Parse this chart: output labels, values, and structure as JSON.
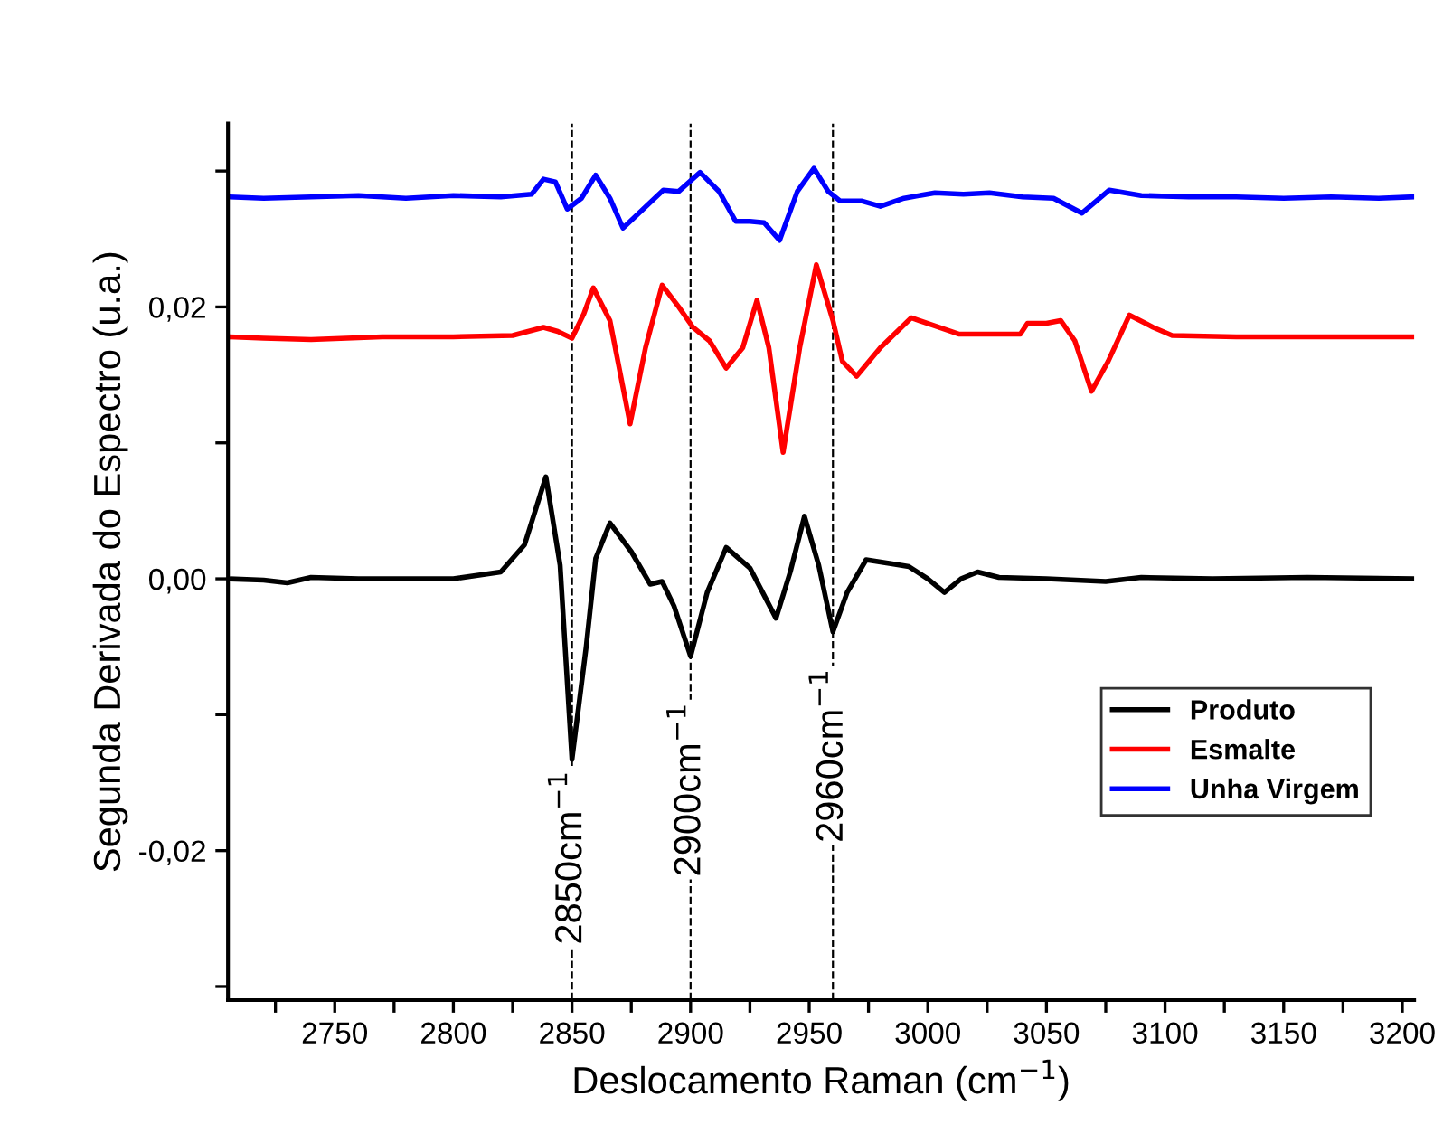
{
  "chart_data": {
    "type": "line",
    "xlabel": "Deslocamento Raman (cm$^{−1}$)",
    "ylabel": "Segunda Derivada do Espectro (u.a.)",
    "xlim": [
      2705,
      3205
    ],
    "ylim": [
      -0.031,
      0.0335
    ],
    "xticks": [
      {
        "value": 2725,
        "label": null
      },
      2750,
      {
        "value": 2775,
        "label": null
      },
      2800,
      {
        "value": 2825,
        "label": null
      },
      2850,
      {
        "value": 2875,
        "label": null
      },
      2900,
      {
        "value": 2925,
        "label": null
      },
      2950,
      {
        "value": 2975,
        "label": null
      },
      3000,
      {
        "value": 3025,
        "label": null
      },
      3050,
      {
        "value": 3075,
        "label": null
      },
      3100,
      {
        "value": 3125,
        "label": null
      },
      3150,
      {
        "value": 3175,
        "label": null
      },
      3200
    ],
    "yticks": [
      {
        "value": -0.03,
        "label": null
      },
      {
        "value": -0.02,
        "label": "-0,02"
      },
      {
        "value": -0.01,
        "label": null
      },
      {
        "value": 0,
        "label": "0,00"
      },
      {
        "value": 0.01,
        "label": null
      },
      {
        "value": 0.02,
        "label": "0,02"
      },
      {
        "value": 0.03,
        "label": null
      }
    ],
    "grid": false,
    "legend": "lower right",
    "line_style": "solid",
    "marker": "none",
    "ref_lines": [
      {
        "axis": "x",
        "value": 2850,
        "label": "2850cm$^{−1}$",
        "line_style": "dashed",
        "color": "#000000"
      },
      {
        "axis": "x",
        "value": 2900,
        "label": "2900cm$^{−1}$",
        "line_style": "dashed",
        "color": "#000000"
      },
      {
        "axis": "x",
        "value": 2960,
        "label": "2960cm$^{−1}$",
        "line_style": "dashed",
        "color": "#000000"
      }
    ],
    "series": [
      {
        "name": "Produto",
        "color": "#000000",
        "x": [
          2705,
          2720,
          2730,
          2740,
          2760,
          2800,
          2820,
          2830,
          2839,
          2845,
          2850,
          2856,
          2860,
          2866,
          2875,
          2883,
          2888,
          2893,
          2900,
          2907,
          2915,
          2925,
          2936,
          2942,
          2948,
          2954,
          2960,
          2966,
          2974,
          2985,
          2992,
          3000,
          3007,
          3014,
          3021,
          3030,
          3050,
          3075,
          3090,
          3120,
          3160,
          3205
        ],
        "values": [
          0,
          -0.0001,
          -0.0003,
          0.0001,
          0,
          0,
          0.0005,
          0.0025,
          0.0075,
          0.001,
          -0.0133,
          -0.005,
          0.0015,
          0.0041,
          0.002,
          -0.0004,
          -0.0002,
          -0.002,
          -0.0057,
          -0.001,
          0.0023,
          0.0008,
          -0.0029,
          0.0005,
          0.0046,
          0.001,
          -0.0039,
          -0.001,
          0.0014,
          0.0011,
          0.0009,
          0,
          -0.001,
          0,
          0.0005,
          0.0001,
          0,
          -0.0002,
          0.0001,
          0,
          0.0001,
          0
        ]
      },
      {
        "name": "Esmalte",
        "color": "#ff0000",
        "x": [
          2705,
          2720,
          2740,
          2770,
          2800,
          2825,
          2838,
          2844,
          2850,
          2855,
          2859,
          2866,
          2874.5,
          2881,
          2888,
          2895,
          2901,
          2908,
          2915,
          2922,
          2928,
          2933,
          2939,
          2946,
          2953,
          2960,
          2964,
          2970,
          2980,
          2993,
          3003,
          3013,
          3039,
          3042,
          3050,
          3056,
          3062,
          3069,
          3076,
          3085,
          3095,
          3103,
          3130,
          3160,
          3205
        ],
        "values": [
          0.0178,
          0.0177,
          0.0176,
          0.0178,
          0.0178,
          0.0179,
          0.0185,
          0.0182,
          0.0177,
          0.0195,
          0.0214,
          0.019,
          0.0114,
          0.017,
          0.0216,
          0.02,
          0.0185,
          0.0175,
          0.0155,
          0.017,
          0.0205,
          0.017,
          0.0093,
          0.017,
          0.0231,
          0.019,
          0.016,
          0.0149,
          0.017,
          0.0192,
          0.0186,
          0.018,
          0.018,
          0.0188,
          0.0188,
          0.019,
          0.0175,
          0.0138,
          0.016,
          0.0194,
          0.0185,
          0.0179,
          0.0178,
          0.0178,
          0.0178
        ]
      },
      {
        "name": "Unha Virgem",
        "color": "#0000ff",
        "x": [
          2705,
          2720,
          2740,
          2760,
          2780,
          2800,
          2820,
          2833,
          2838,
          2843,
          2848,
          2854,
          2860,
          2866,
          2871.5,
          2880,
          2888.5,
          2895,
          2904,
          2912,
          2919,
          2925,
          2931,
          2937.5,
          2945,
          2952,
          2958,
          2963,
          2972,
          2980,
          2990,
          3003,
          3015,
          3026,
          3040,
          3053,
          3065,
          3076.5,
          3090,
          3110,
          3130,
          3150,
          3170,
          3190,
          3205
        ],
        "values": [
          0.0281,
          0.028,
          0.0281,
          0.0282,
          0.028,
          0.0282,
          0.0281,
          0.0283,
          0.0294,
          0.0292,
          0.0272,
          0.028,
          0.0297,
          0.028,
          0.0258,
          0.0272,
          0.0286,
          0.0285,
          0.0299,
          0.0285,
          0.0263,
          0.0263,
          0.0262,
          0.0249,
          0.0285,
          0.0302,
          0.0285,
          0.0278,
          0.0278,
          0.0274,
          0.028,
          0.0284,
          0.0283,
          0.0284,
          0.0281,
          0.028,
          0.0269,
          0.0286,
          0.0282,
          0.0281,
          0.0281,
          0.028,
          0.0281,
          0.028,
          0.0281
        ]
      }
    ]
  }
}
